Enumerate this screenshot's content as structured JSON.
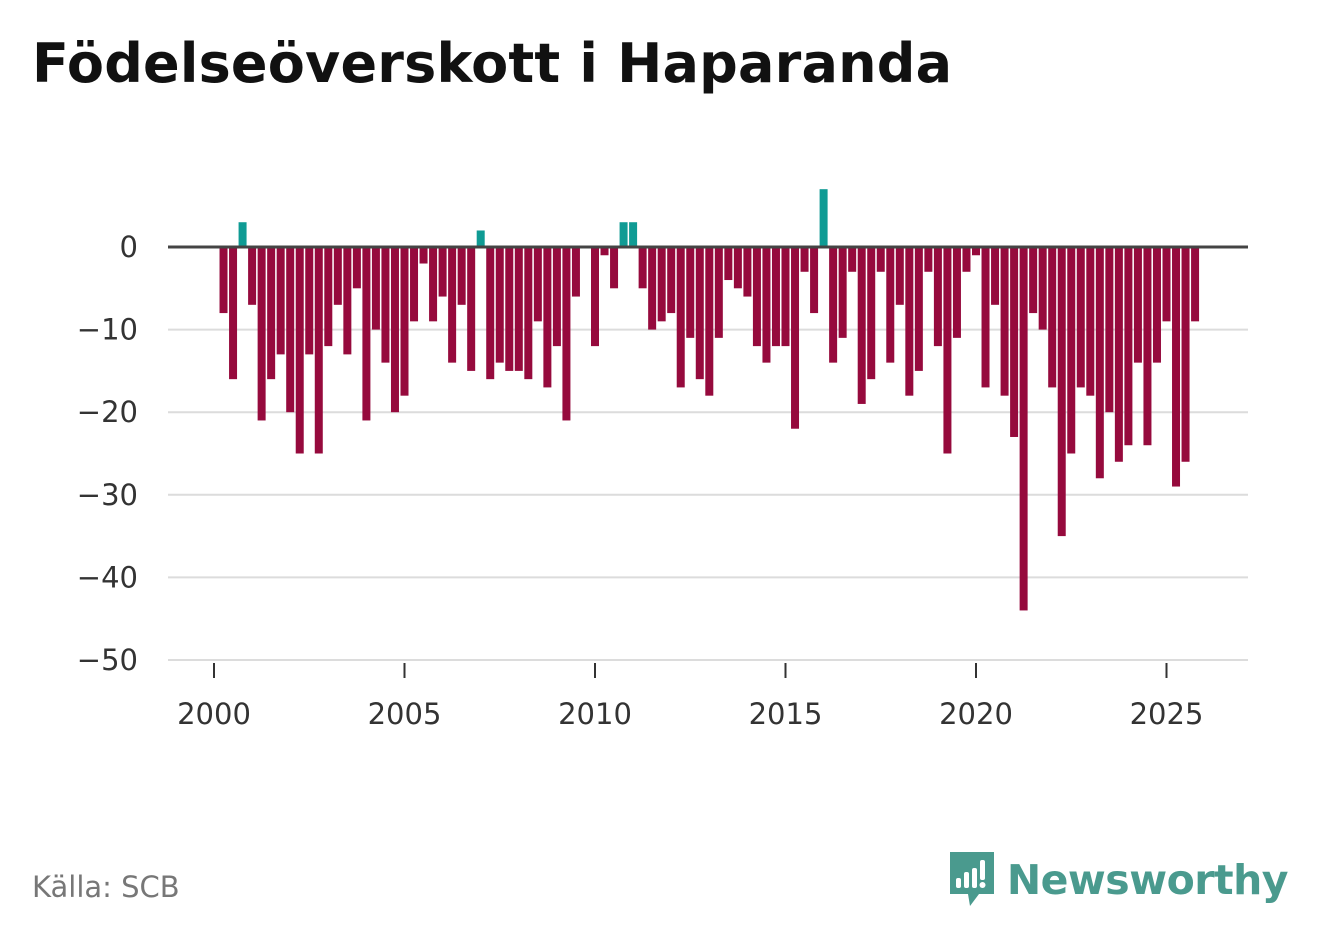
{
  "title": "Födelseöverskott i Haparanda",
  "source": "Källa: SCB",
  "brand": "Newsworthy",
  "colors": {
    "positive": "#0f9b94",
    "negative": "#960a3d",
    "grid": "#dcdcdc",
    "zero": "#444444",
    "text": "#333333"
  },
  "chart_data": {
    "type": "bar",
    "title": "Födelseöverskott i Haparanda",
    "xlabel": "",
    "ylabel": "",
    "ylim": [
      -50,
      8
    ],
    "yticks": [
      0,
      -10,
      -20,
      -30,
      -40,
      -50
    ],
    "ytick_labels": [
      "0",
      "−10",
      "−20",
      "−30",
      "−40",
      "−50"
    ],
    "xticks": [
      2000,
      2005,
      2010,
      2015,
      2020,
      2025
    ],
    "xtick_labels": [
      "2000",
      "2005",
      "2010",
      "2015",
      "2020",
      "2025"
    ],
    "x_start": 2000.25,
    "x_step": 0.25,
    "values": [
      -8,
      -16,
      3,
      -7,
      -21,
      -16,
      -13,
      -20,
      -25,
      -13,
      -25,
      -12,
      -7,
      -13,
      -5,
      -21,
      -10,
      -14,
      -20,
      -18,
      -9,
      -2,
      -9,
      -6,
      -14,
      -7,
      -15,
      2,
      -16,
      -14,
      -15,
      -15,
      -16,
      -9,
      -17,
      -12,
      -21,
      -6,
      0,
      -12,
      -1,
      -5,
      3,
      3,
      -5,
      -10,
      -9,
      -8,
      -17,
      -11,
      -16,
      -18,
      -11,
      -4,
      -5,
      -6,
      -12,
      -14,
      -12,
      -12,
      -22,
      -3,
      -8,
      7,
      -14,
      -11,
      -3,
      -19,
      -16,
      -3,
      -14,
      -7,
      -18,
      -15,
      -3,
      -12,
      -25,
      -11,
      -3,
      -1,
      -17,
      -7,
      -18,
      -23,
      -44,
      -8,
      -10,
      -17,
      -35,
      -25,
      -17,
      -18,
      -28,
      -20,
      -26,
      -24,
      -14,
      -24,
      -14,
      -9,
      -29,
      -26,
      -9
    ]
  }
}
